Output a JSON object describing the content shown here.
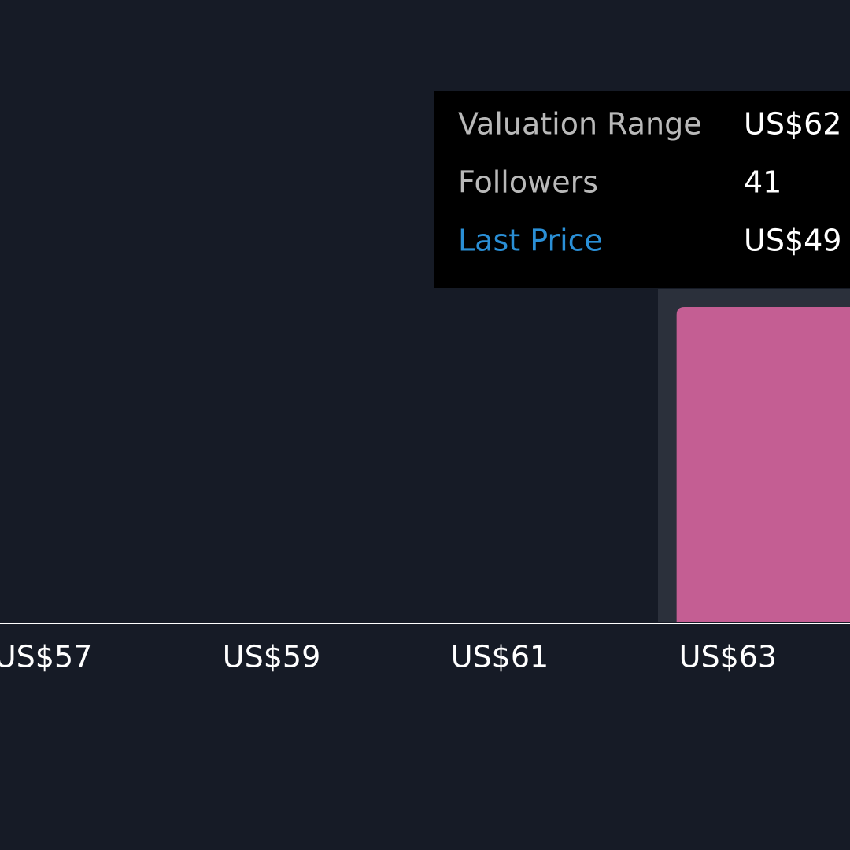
{
  "chart_data": {
    "type": "histogram",
    "bins": [
      62.55,
      64.55
    ],
    "values": [
      41
    ],
    "color": "#c45e93",
    "xlim": [
      56.62,
      64.07
    ],
    "xticks": [
      {
        "value": 57,
        "label": "US$57"
      },
      {
        "value": 59,
        "label": "US$59"
      },
      {
        "value": 61,
        "label": "US$61"
      },
      {
        "value": 63,
        "label": "US$63"
      }
    ],
    "tooltip": [
      {
        "label": "Valuation Range",
        "value": "US$62"
      },
      {
        "label": "Followers"
      },
      {
        "label": "Last Price",
        "value": "US$49"
      }
    ]
  }
}
